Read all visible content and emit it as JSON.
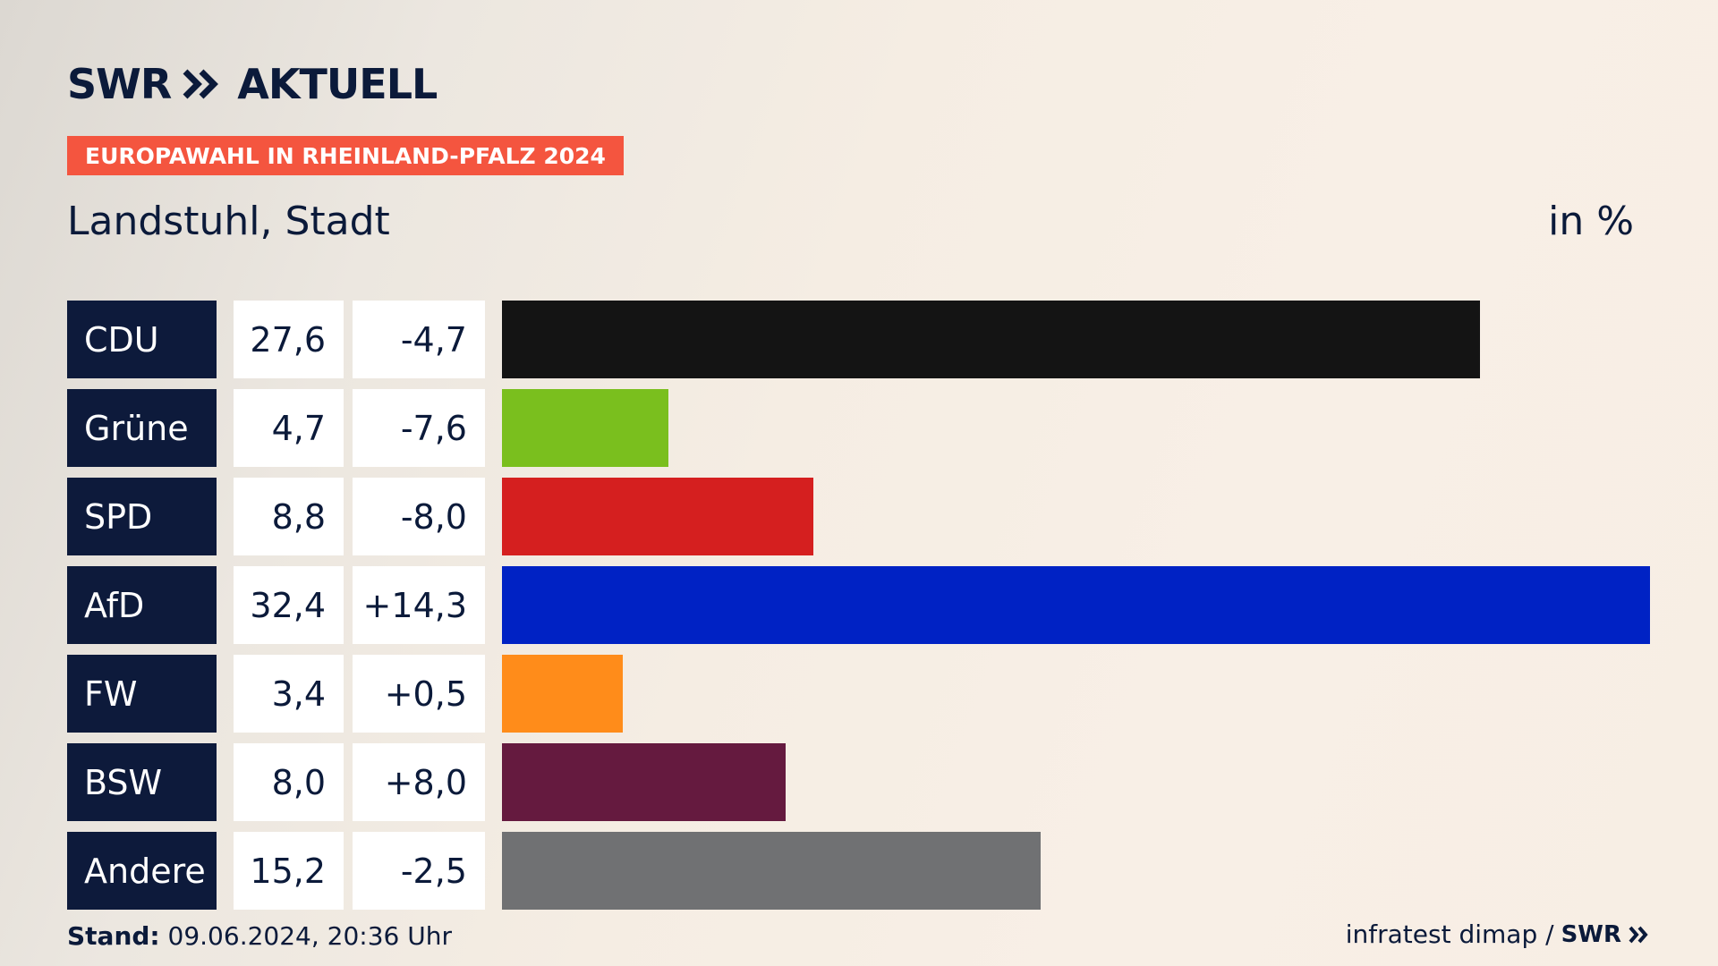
{
  "brand": {
    "name": "SWR",
    "product": "AKTUELL"
  },
  "tag": "EUROPAWAHL IN RHEINLAND-PFALZ 2024",
  "subtitle": "Landstuhl, Stadt",
  "unit": "in %",
  "chart_data": {
    "type": "bar",
    "orientation": "horizontal",
    "title": "Landstuhl, Stadt",
    "unit": "in %",
    "xlim": [
      0,
      32.4
    ],
    "categories": [
      "CDU",
      "Grüne",
      "SPD",
      "AfD",
      "FW",
      "BSW",
      "Andere"
    ],
    "values": [
      27.6,
      4.7,
      8.8,
      32.4,
      3.4,
      8.0,
      15.2
    ],
    "value_labels": [
      "27,6",
      "4,7",
      "8,8",
      "32,4",
      "3,4",
      "8,0",
      "15,2"
    ],
    "change_labels": [
      "-4,7",
      "-7,6",
      "-8,0",
      "+14,3",
      "+0,5",
      "+8,0",
      "-2,5"
    ],
    "changes": [
      -4.7,
      -7.6,
      -8.0,
      14.3,
      0.5,
      8.0,
      -2.5
    ],
    "colors": [
      "#141414",
      "#7abf1e",
      "#d51f1f",
      "#0022c4",
      "#ff8c1a",
      "#651a3f",
      "#707173"
    ],
    "grid": false,
    "legend": "none"
  },
  "footer": {
    "stand_label": "Stand:",
    "stand_value": "09.06.2024, 20:36 Uhr",
    "source": "infratest dimap /",
    "source_brand": "SWR"
  }
}
